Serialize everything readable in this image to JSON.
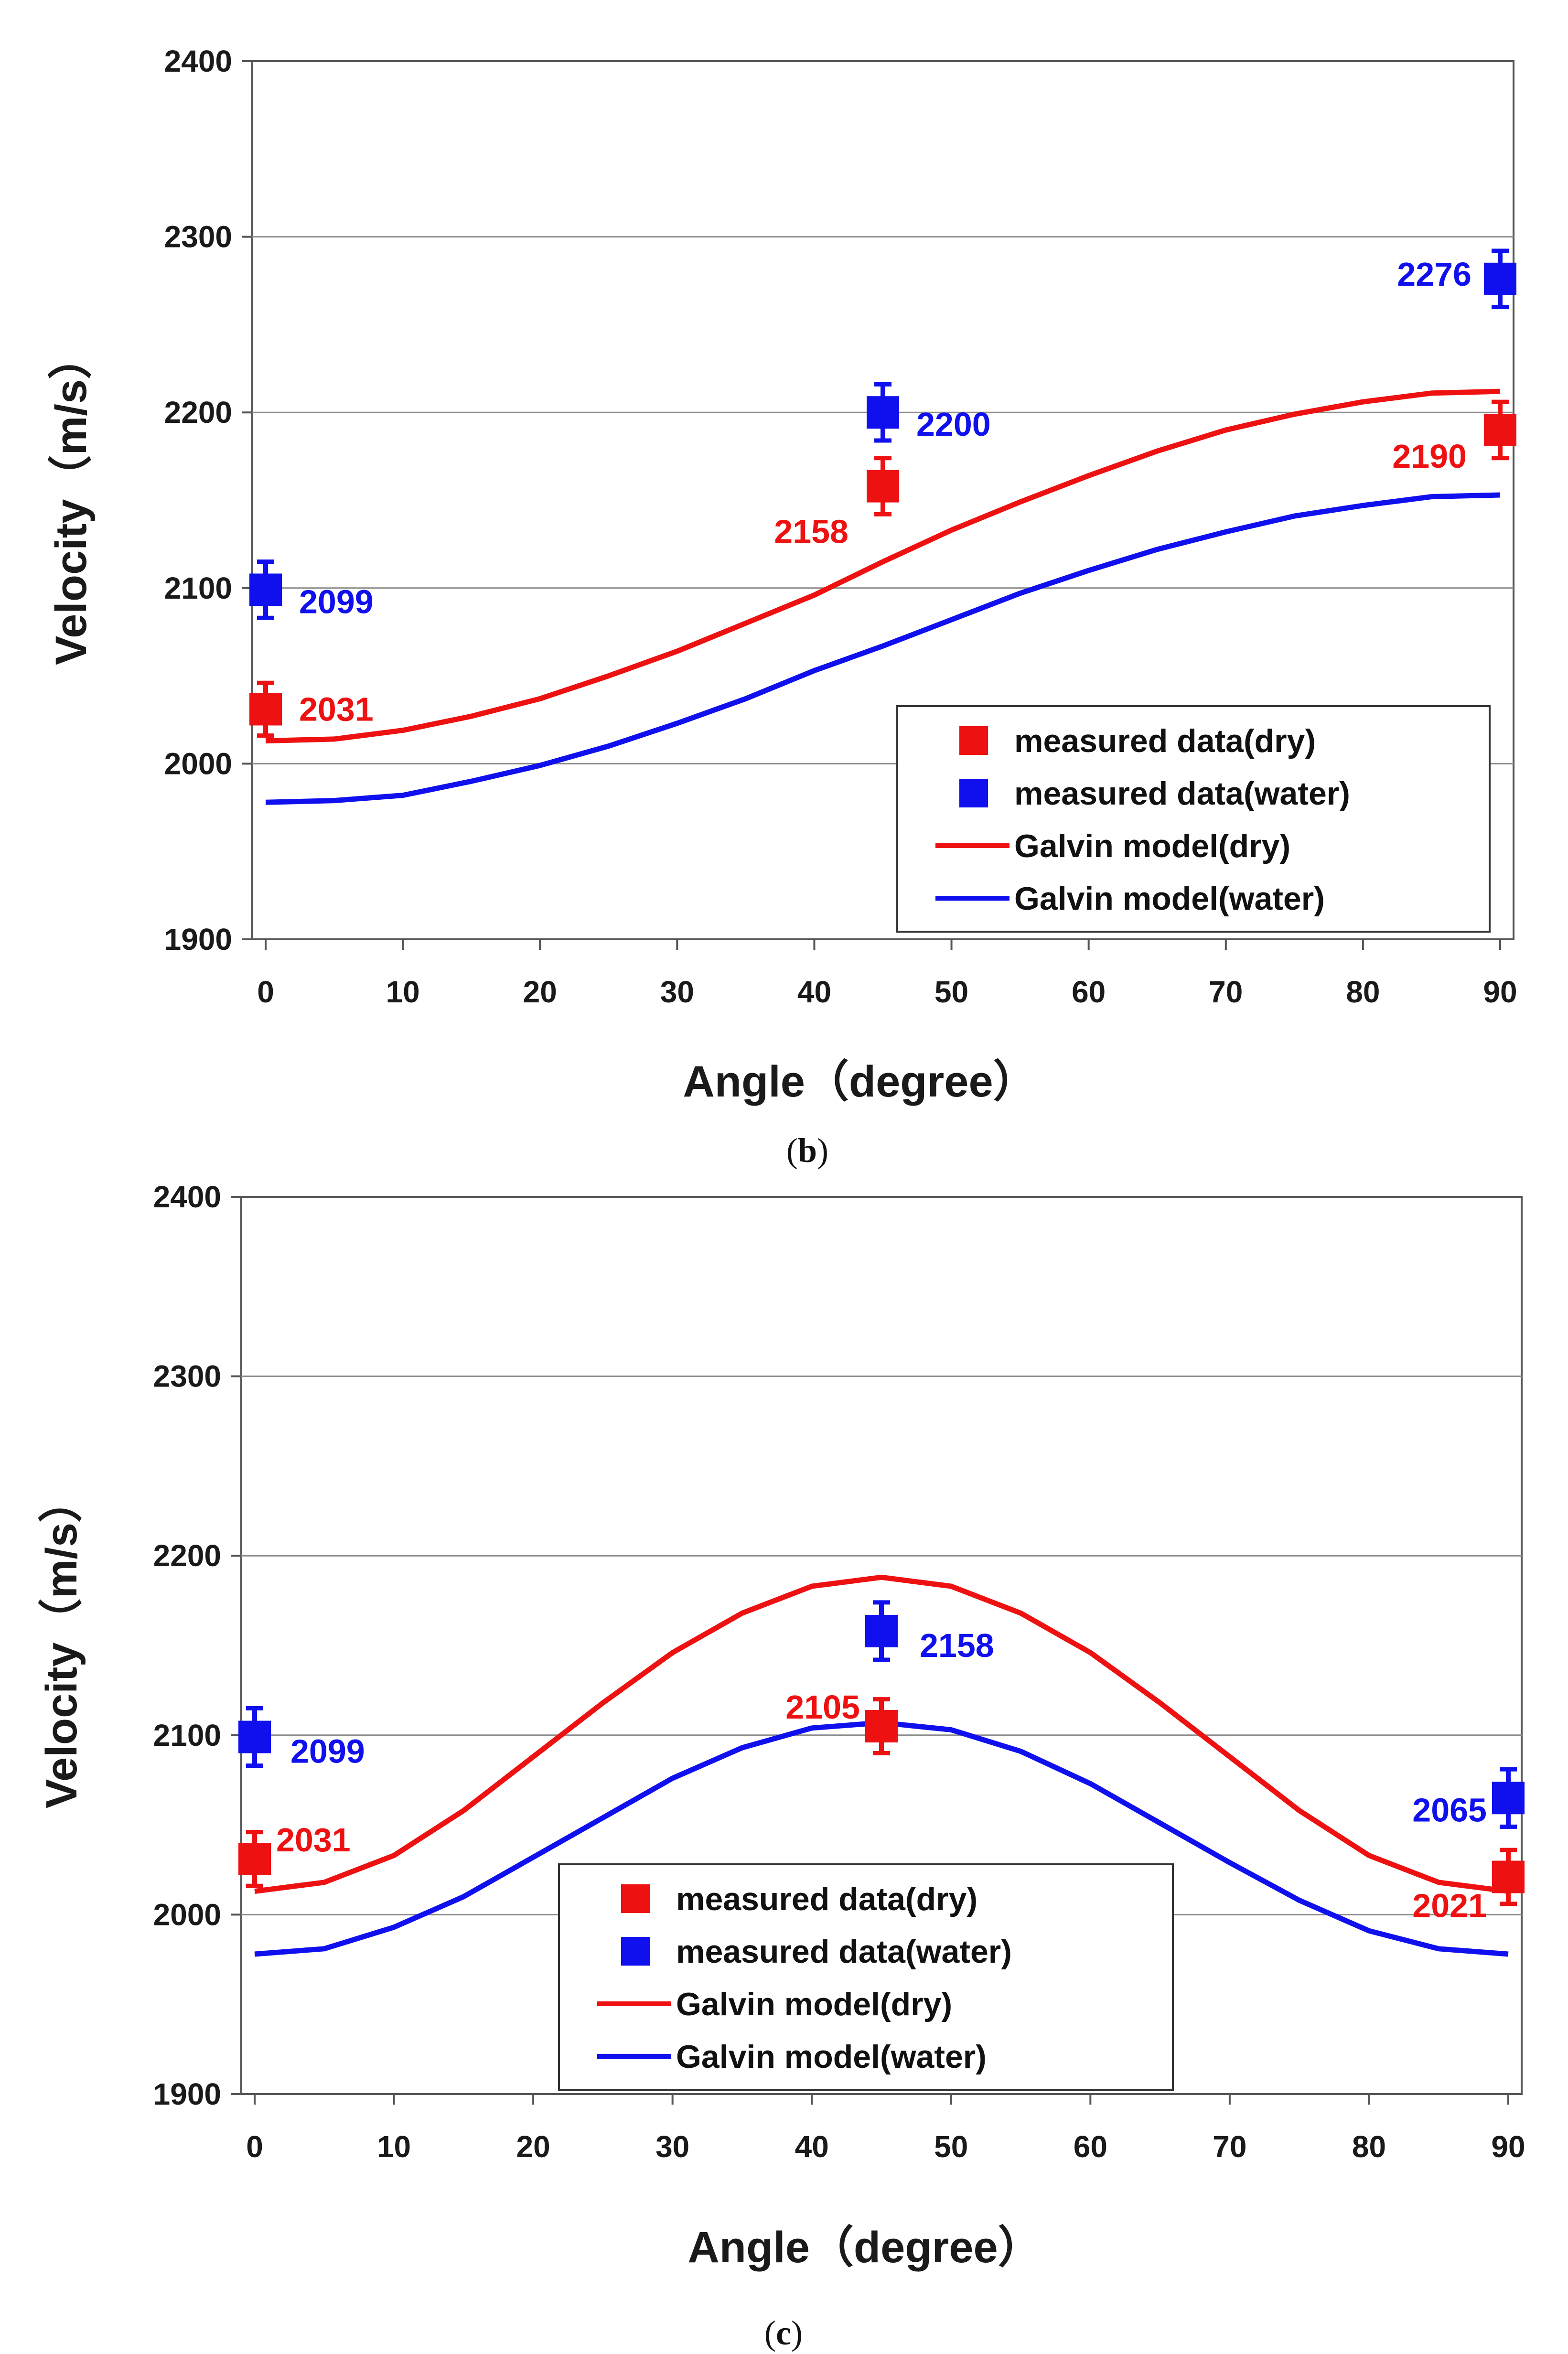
{
  "colors": {
    "dry": "#ee1111",
    "water": "#1010ee",
    "grid": "#8c8c8c",
    "axis": "#555555"
  },
  "legend_labels": {
    "measured_dry": "measured data(dry)",
    "measured_water": "measured data(water)",
    "model_dry": "Galvin model(dry)",
    "model_water": "Galvin model(water)"
  },
  "chart_data": [
    {
      "panel": "(b)",
      "type": "scatter",
      "xlabel": "Angle（degree）",
      "ylabel": "Velocity（m/s）",
      "xlim": [
        0,
        90
      ],
      "ylim": [
        1900,
        2400
      ],
      "xticks": [
        0,
        10,
        20,
        30,
        40,
        50,
        60,
        70,
        80,
        90
      ],
      "yticks": [
        1900,
        2000,
        2100,
        2200,
        2300,
        2400
      ],
      "grid": "horizontal",
      "legend_position": "bottom-right",
      "measured": [
        {
          "series": "dry",
          "x": 0,
          "y": 2031,
          "label": "2031",
          "error": 15
        },
        {
          "series": "dry",
          "x": 45,
          "y": 2158,
          "label": "2158",
          "error": 16
        },
        {
          "series": "dry",
          "x": 90,
          "y": 2190,
          "label": "2190",
          "error": 16
        },
        {
          "series": "water",
          "x": 0,
          "y": 2099,
          "label": "2099",
          "error": 16
        },
        {
          "series": "water",
          "x": 45,
          "y": 2200,
          "label": "2200",
          "error": 16
        },
        {
          "series": "water",
          "x": 90,
          "y": 2276,
          "label": "2276",
          "error": 16
        }
      ],
      "models": [
        {
          "series": "dry",
          "x": [
            0,
            5,
            10,
            15,
            20,
            25,
            30,
            35,
            40,
            45,
            50,
            55,
            60,
            65,
            70,
            75,
            80,
            85,
            90
          ],
          "y": [
            2013,
            2014,
            2019,
            2027,
            2037,
            2050,
            2064,
            2080,
            2096,
            2115,
            2133,
            2149,
            2164,
            2178,
            2190,
            2199,
            2206,
            2211,
            2212
          ]
        },
        {
          "series": "water",
          "x": [
            0,
            5,
            10,
            15,
            20,
            25,
            30,
            35,
            40,
            45,
            50,
            55,
            60,
            65,
            70,
            75,
            80,
            85,
            90
          ],
          "y": [
            1978,
            1979,
            1982,
            1990,
            1999,
            2010,
            2023,
            2037,
            2053,
            2067,
            2082,
            2097,
            2110,
            2122,
            2132,
            2141,
            2147,
            2152,
            2153
          ]
        }
      ]
    },
    {
      "panel": "(c)",
      "type": "scatter",
      "xlabel": "Angle（degree）",
      "ylabel": "Velocity（m/s）",
      "xlim": [
        0,
        90
      ],
      "ylim": [
        1900,
        2400
      ],
      "xticks": [
        0,
        10,
        20,
        30,
        40,
        50,
        60,
        70,
        80,
        90
      ],
      "yticks": [
        1900,
        2000,
        2100,
        2200,
        2300,
        2400
      ],
      "grid": "horizontal",
      "legend_position": "bottom-center",
      "measured": [
        {
          "series": "dry",
          "x": 0,
          "y": 2031,
          "label": "2031",
          "error": 15
        },
        {
          "series": "dry",
          "x": 45,
          "y": 2105,
          "label": "2105",
          "error": 15
        },
        {
          "series": "dry",
          "x": 90,
          "y": 2021,
          "label": "2021",
          "error": 15
        },
        {
          "series": "water",
          "x": 0,
          "y": 2099,
          "label": "2099",
          "error": 16
        },
        {
          "series": "water",
          "x": 45,
          "y": 2158,
          "label": "2158",
          "error": 16
        },
        {
          "series": "water",
          "x": 90,
          "y": 2065,
          "label": "2065",
          "error": 16
        }
      ],
      "models": [
        {
          "series": "dry",
          "x": [
            0,
            5,
            10,
            15,
            20,
            25,
            30,
            35,
            40,
            45,
            50,
            55,
            60,
            65,
            70,
            75,
            80,
            85,
            90
          ],
          "y": [
            2013,
            2018,
            2033,
            2058,
            2088,
            2118,
            2146,
            2168,
            2183,
            2188,
            2183,
            2168,
            2146,
            2118,
            2088,
            2058,
            2033,
            2018,
            2013
          ]
        },
        {
          "series": "water",
          "x": [
            0,
            5,
            10,
            15,
            20,
            25,
            30,
            35,
            40,
            45,
            50,
            55,
            60,
            65,
            70,
            75,
            80,
            85,
            90
          ],
          "y": [
            1978,
            1981,
            1993,
            2010,
            2032,
            2054,
            2076,
            2093,
            2104,
            2107,
            2103,
            2091,
            2073,
            2051,
            2029,
            2008,
            1991,
            1981,
            1978
          ]
        }
      ]
    }
  ]
}
